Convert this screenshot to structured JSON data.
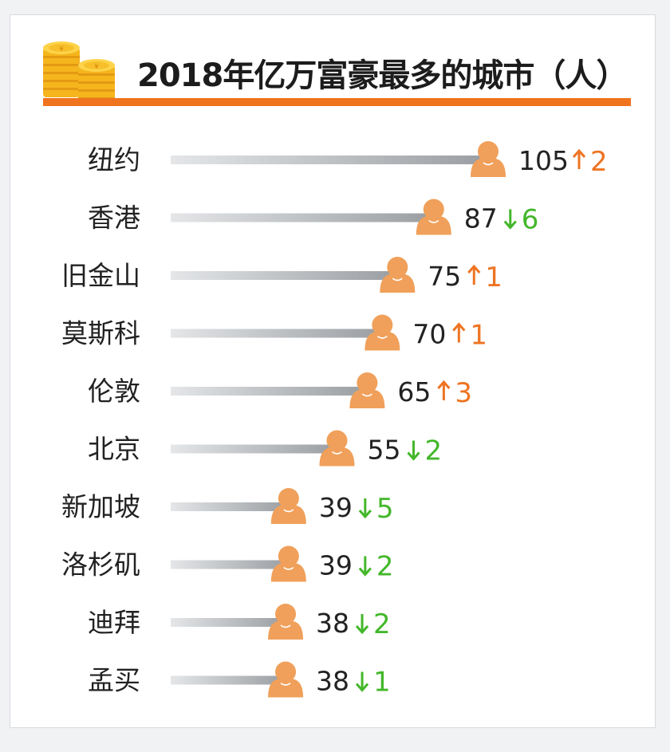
{
  "header": {
    "title": "2018年亿万富豪最多的城市（人）"
  },
  "colors": {
    "accent": "#f0741e",
    "up": "#ee7422",
    "down": "#43b72a",
    "person_icon": "#f0a05a"
  },
  "icons": {
    "header": "coin-stack-icon",
    "marker": "person-icon"
  },
  "chart_data": {
    "type": "bar",
    "orientation": "horizontal",
    "title": "2018年亿万富豪最多的城市（人）",
    "categories": [
      "纽约",
      "香港",
      "旧金山",
      "莫斯科",
      "伦敦",
      "北京",
      "新加坡",
      "洛杉矶",
      "迪拜",
      "孟买"
    ],
    "values": [
      105,
      87,
      75,
      70,
      65,
      55,
      39,
      39,
      38,
      38
    ],
    "rank_change": [
      {
        "direction": "up",
        "amount": 2
      },
      {
        "direction": "down",
        "amount": 6
      },
      {
        "direction": "up",
        "amount": 1
      },
      {
        "direction": "up",
        "amount": 1
      },
      {
        "direction": "up",
        "amount": 3
      },
      {
        "direction": "down",
        "amount": 2
      },
      {
        "direction": "down",
        "amount": 5
      },
      {
        "direction": "down",
        "amount": 2
      },
      {
        "direction": "down",
        "amount": 2
      },
      {
        "direction": "down",
        "amount": 1
      }
    ],
    "xlim": [
      0,
      105
    ],
    "grid": false,
    "legend": "none"
  }
}
